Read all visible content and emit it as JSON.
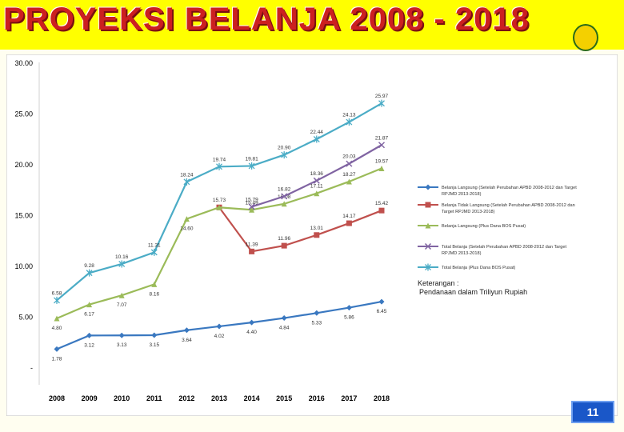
{
  "header": {
    "title": "PROYEKSI BELANJA 2008 - 2018"
  },
  "page_number": "11",
  "note": {
    "line1": "Keterangan :",
    "line2": "Pendanaan dalam Triliyun Rupiah"
  },
  "colors": {
    "header_bg": "#ffff00",
    "title": "#cc2020",
    "page_badge": "#1a57c8"
  },
  "chart_data": {
    "type": "line",
    "categories": [
      "2008",
      "2009",
      "2010",
      "2011",
      "2012",
      "2013",
      "2014",
      "2015",
      "2016",
      "2017",
      "2018"
    ],
    "ylim": [
      0,
      30
    ],
    "yticks": [
      "-",
      "5.00",
      "10.00",
      "15.00",
      "20.00",
      "25.00",
      "30.00"
    ],
    "ytick_values": [
      0,
      5,
      10,
      15,
      20,
      25,
      30
    ],
    "grid": false,
    "legend_position": "right",
    "series": [
      {
        "name": "Belanja Langsung (Setelah Perubahan APBD 2008-2012 dan Target RPJMD 2013-2018)",
        "color": "#3a78c0",
        "marker": "diamond",
        "values": [
          1.78,
          3.12,
          3.13,
          3.15,
          3.64,
          4.02,
          4.4,
          4.84,
          5.33,
          5.86,
          6.45
        ],
        "labels": [
          "1.78",
          "3.12",
          "3.13",
          "3.15",
          "3.64",
          "4.02",
          "4.40",
          "4.84",
          "5.33",
          "5.86",
          "6.45"
        ]
      },
      {
        "name": "Belanja Tidak Langsung (Setelah Perubahan APBD 2008-2012 dan Target RPJMD 2013-2018)",
        "color": "#c0504d",
        "marker": "square",
        "values": [
          null,
          null,
          null,
          null,
          null,
          15.73,
          11.39,
          11.96,
          13.01,
          14.17,
          15.42
        ],
        "labels": [
          "",
          "",
          "",
          "",
          "",
          "",
          "11.39",
          "11.96",
          "13.01",
          "14.17",
          "15.42"
        ]
      },
      {
        "name": "Belanja Langsung (Plus Dana BOS Pusat)",
        "color": "#9bbb59",
        "marker": "triangle",
        "values": [
          4.8,
          6.17,
          7.07,
          8.16,
          14.6,
          15.73,
          15.49,
          16.08,
          17.11,
          18.27,
          19.57
        ],
        "labels": [
          "4.80",
          "6.17",
          "7.07",
          "8.16",
          "14.60",
          "15.73",
          "15.49",
          "16.08",
          "17.11",
          "18.27",
          "19.57"
        ]
      },
      {
        "name": "Total Belanja (Setelah Perubahan APBD 2008-2012 dan Target RPJMD 2013-2018)",
        "color": "#8064a2",
        "marker": "x",
        "values": [
          null,
          null,
          null,
          null,
          null,
          null,
          15.79,
          16.82,
          18.36,
          20.03,
          21.87
        ],
        "labels": [
          "",
          "",
          "",
          "",
          "",
          "",
          "15.79",
          "16.82",
          "18.36",
          "20.03",
          "21.87"
        ]
      },
      {
        "name": "Total Belanja (Plus Dana BOS Pusat)",
        "color": "#4bacc6",
        "marker": "star",
        "values": [
          6.58,
          9.28,
          10.16,
          11.31,
          18.24,
          19.74,
          19.81,
          20.9,
          22.44,
          24.13,
          25.97
        ],
        "labels": [
          "6.58",
          "9.28",
          "10.16",
          "11.31",
          "18.24",
          "19.74",
          "19.81",
          "20.90",
          "22.44",
          "24.13",
          "25.97"
        ]
      }
    ]
  }
}
